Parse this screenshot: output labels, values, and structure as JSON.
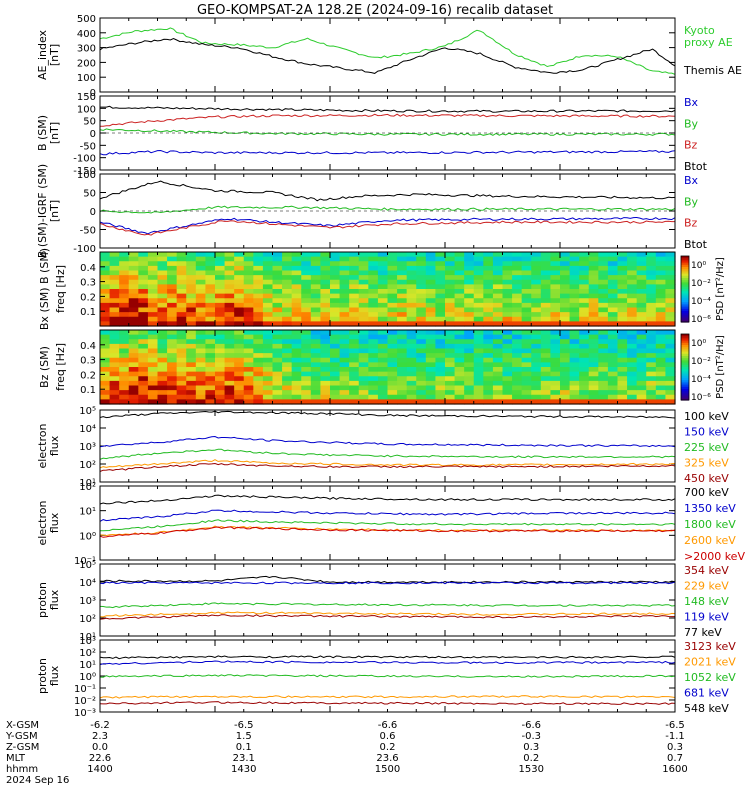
{
  "title": "GEO-KOMPSAT-2A 128.2E (2024-09-16) recalib dataset",
  "chart_data": [
    {
      "id": "ae",
      "type": "line",
      "ylabel": "AE_index\n[nT]",
      "ylim": [
        0,
        500
      ],
      "yticks": [
        "500",
        "400",
        "300",
        "200",
        "100",
        "0"
      ],
      "legend": [
        {
          "text": "Kyoto",
          "color": "#2ecc2e"
        },
        {
          "text": "proxy AE",
          "color": "#2ecc2e"
        },
        {
          "text": "Themis AE",
          "color": "#000000"
        }
      ],
      "series": [
        {
          "name": "Kyoto proxy AE",
          "color": "#2ecc2e",
          "x": [
            0,
            0.06,
            0.12,
            0.18,
            0.24,
            0.3,
            0.36,
            0.42,
            0.48,
            0.54,
            0.6,
            0.66,
            0.72,
            0.78,
            0.84,
            0.9,
            0.96,
            1.0
          ],
          "values": [
            360,
            410,
            430,
            330,
            320,
            300,
            360,
            290,
            230,
            260,
            310,
            420,
            260,
            170,
            250,
            240,
            140,
            120
          ]
        },
        {
          "name": "Themis AE",
          "color": "#000000",
          "x": [
            0,
            0.06,
            0.12,
            0.18,
            0.24,
            0.3,
            0.36,
            0.42,
            0.48,
            0.54,
            0.6,
            0.66,
            0.72,
            0.78,
            0.84,
            0.9,
            0.96,
            1.0
          ],
          "values": [
            290,
            330,
            360,
            320,
            300,
            240,
            190,
            160,
            130,
            220,
            300,
            260,
            170,
            130,
            150,
            220,
            290,
            180
          ]
        }
      ]
    },
    {
      "id": "bsm",
      "type": "line",
      "ylabel": "B (SM)\n[nT]",
      "ylim": [
        -150,
        150
      ],
      "yticks": [
        "150",
        "100",
        "50",
        "0",
        "-50",
        "-100",
        "-150"
      ],
      "legend": [
        {
          "text": "Bx",
          "color": "#0000cc"
        },
        {
          "text": "By",
          "color": "#22bb22"
        },
        {
          "text": "Bz",
          "color": "#cc2222"
        },
        {
          "text": "Btot",
          "color": "#000000"
        }
      ],
      "series": [
        {
          "name": "Btot",
          "color": "#000000",
          "x": [
            0,
            0.15,
            0.3,
            0.5,
            0.7,
            1.0
          ],
          "values": [
            105,
            100,
            95,
            90,
            88,
            90
          ]
        },
        {
          "name": "Bz",
          "color": "#cc2222",
          "x": [
            0,
            0.1,
            0.2,
            0.3,
            0.5,
            0.7,
            1.0
          ],
          "values": [
            30,
            50,
            65,
            70,
            72,
            70,
            68
          ]
        },
        {
          "name": "By",
          "color": "#22bb22",
          "x": [
            0,
            0.15,
            0.3,
            0.5,
            1.0
          ],
          "values": [
            15,
            5,
            -2,
            -5,
            -5
          ]
        },
        {
          "name": "Bx",
          "color": "#0000cc",
          "x": [
            0,
            0.1,
            0.2,
            0.3,
            0.5,
            1.0
          ],
          "values": [
            -85,
            -75,
            -80,
            -80,
            -80,
            -75
          ]
        }
      ]
    },
    {
      "id": "bigrf",
      "type": "line",
      "ylabel": "B (SM)-IGRF (SM)\n[nT]",
      "ylim": [
        -100,
        100
      ],
      "yticks": [
        "100",
        "50",
        "0",
        "-50",
        "-100"
      ],
      "legend": [
        {
          "text": "Bx",
          "color": "#0000cc"
        },
        {
          "text": "By",
          "color": "#22bb22"
        },
        {
          "text": "Bz",
          "color": "#cc2222"
        },
        {
          "text": "Btot",
          "color": "#000000"
        }
      ],
      "series": [
        {
          "name": "Btot",
          "color": "#000000",
          "x": [
            0,
            0.1,
            0.2,
            0.3,
            0.38,
            0.45,
            0.55,
            0.7,
            1.0
          ],
          "values": [
            35,
            80,
            55,
            50,
            30,
            40,
            45,
            40,
            35
          ]
        },
        {
          "name": "By",
          "color": "#22bb22",
          "x": [
            0,
            0.1,
            0.2,
            0.35,
            0.5,
            1.0
          ],
          "values": [
            0,
            -5,
            10,
            10,
            5,
            5
          ]
        },
        {
          "name": "Bx",
          "color": "#0000cc",
          "x": [
            0,
            0.08,
            0.15,
            0.22,
            0.3,
            0.4,
            0.5,
            0.7,
            1.0
          ],
          "values": [
            -30,
            -60,
            -40,
            -20,
            -30,
            -40,
            -25,
            -22,
            -20
          ]
        },
        {
          "name": "Bz",
          "color": "#cc2222",
          "x": [
            0,
            0.08,
            0.15,
            0.22,
            0.3,
            0.4,
            0.5,
            0.7,
            1.0
          ],
          "values": [
            -35,
            -65,
            -45,
            -25,
            -35,
            -45,
            -35,
            -30,
            -30
          ]
        }
      ]
    },
    {
      "id": "bxspec",
      "type": "heatmap",
      "ylabel": "Bx (SM) B (SM)",
      "ylabel2": "freq [Hz]",
      "yticks": [
        "0.4",
        "0.3",
        "0.2",
        "0.1"
      ],
      "colorbar_label": "PSD [nT²/Hz]",
      "colorbar_ticks": [
        "10⁰",
        "10⁻²",
        "10⁻⁴",
        "10⁻⁶"
      ],
      "cols": 60,
      "rows": 16,
      "activity": [
        0.85,
        0.9,
        0.95,
        1.0,
        0.9,
        0.85,
        0.8,
        0.85,
        0.9,
        0.8,
        0.75,
        0.7,
        0.75,
        0.85,
        0.9,
        0.8,
        0.7,
        0.6,
        0.5,
        0.55,
        0.6,
        0.5,
        0.45,
        0.5,
        0.45,
        0.5,
        0.55,
        0.5,
        0.45,
        0.4,
        0.45,
        0.5,
        0.45,
        0.5,
        0.45,
        0.4,
        0.45,
        0.5,
        0.45,
        0.4,
        0.4,
        0.45,
        0.5,
        0.45,
        0.4,
        0.35,
        0.4,
        0.45,
        0.4,
        0.35,
        0.4,
        0.45,
        0.4,
        0.35,
        0.4,
        0.45,
        0.4,
        0.35,
        0.4,
        0.45
      ]
    },
    {
      "id": "bzspec",
      "type": "heatmap",
      "ylabel": "Bz (SM)",
      "ylabel2": "freq [Hz]",
      "yticks": [
        "0.4",
        "0.3",
        "0.2",
        "0.1"
      ],
      "colorbar_label": "PSD [nT²/Hz]",
      "colorbar_ticks": [
        "10⁰",
        "10⁻²",
        "10⁻⁴",
        "10⁻⁶"
      ],
      "cols": 60,
      "rows": 16,
      "activity": [
        0.8,
        0.85,
        0.9,
        0.95,
        1.0,
        0.9,
        0.85,
        0.8,
        0.85,
        0.9,
        0.85,
        0.8,
        0.75,
        0.85,
        0.9,
        0.8,
        0.7,
        0.6,
        0.5,
        0.45,
        0.4,
        0.35,
        0.3,
        0.35,
        0.3,
        0.3,
        0.35,
        0.3,
        0.25,
        0.3,
        0.3,
        0.35,
        0.3,
        0.25,
        0.3,
        0.3,
        0.35,
        0.3,
        0.25,
        0.3,
        0.3,
        0.35,
        0.25,
        0.3,
        0.3,
        0.25,
        0.3,
        0.3,
        0.35,
        0.3,
        0.25,
        0.3,
        0.35,
        0.3,
        0.3,
        0.25,
        0.3,
        0.35,
        0.3,
        0.25
      ]
    },
    {
      "id": "elec1",
      "type": "line",
      "log": true,
      "ylabel": "electron\nflux",
      "ylim_exp": [
        1,
        5
      ],
      "yticks": [
        "10⁵",
        "10⁴",
        "10³",
        "10²",
        "10¹"
      ],
      "legend": [
        {
          "text": "100 keV",
          "color": "#000000"
        },
        {
          "text": "150 keV",
          "color": "#0000cc"
        },
        {
          "text": "225 keV",
          "color": "#22bb22"
        },
        {
          "text": "325 keV",
          "color": "#ff9900"
        },
        {
          "text": "450 keV",
          "color": "#990000"
        }
      ],
      "series": [
        {
          "name": "100 keV",
          "color": "#000000",
          "x": [
            0,
            0.1,
            0.2,
            0.3,
            0.4,
            0.5,
            0.7,
            1.0
          ],
          "values": [
            4.6,
            4.8,
            4.9,
            4.85,
            4.8,
            4.7,
            4.65,
            4.6
          ]
        },
        {
          "name": "150 keV",
          "color": "#0000cc",
          "x": [
            0,
            0.1,
            0.2,
            0.3,
            0.4,
            0.5,
            0.7,
            1.0
          ],
          "values": [
            3.0,
            3.2,
            3.5,
            3.3,
            3.2,
            3.1,
            3.05,
            3.0
          ]
        },
        {
          "name": "225 keV",
          "color": "#22bb22",
          "x": [
            0,
            0.1,
            0.2,
            0.3,
            0.4,
            0.5,
            0.7,
            1.0
          ],
          "values": [
            2.3,
            2.6,
            2.8,
            2.6,
            2.5,
            2.45,
            2.4,
            2.4
          ]
        },
        {
          "name": "325 keV",
          "color": "#ff9900",
          "x": [
            0,
            0.1,
            0.2,
            0.3,
            0.4,
            0.5,
            0.7,
            1.0
          ],
          "values": [
            1.8,
            2.0,
            2.2,
            2.05,
            2.0,
            1.95,
            1.95,
            2.0
          ]
        },
        {
          "name": "450 keV",
          "color": "#990000",
          "x": [
            0,
            0.1,
            0.2,
            0.3,
            0.4,
            0.5,
            0.7,
            1.0
          ],
          "values": [
            1.6,
            1.85,
            2.0,
            1.9,
            1.85,
            1.85,
            1.85,
            1.9
          ]
        }
      ]
    },
    {
      "id": "elec2",
      "type": "line",
      "log": true,
      "ylabel": "electron\nflux",
      "ylim_exp": [
        -1,
        2
      ],
      "yticks": [
        "10²",
        "10¹",
        "10⁰",
        "10⁻¹"
      ],
      "legend": [
        {
          "text": "700 keV",
          "color": "#000000"
        },
        {
          "text": "1350 keV",
          "color": "#0000cc"
        },
        {
          "text": "1800 keV",
          "color": "#22bb22"
        },
        {
          "text": "2600 keV",
          "color": "#ff9900"
        },
        {
          "text": ">2000 keV",
          "color": "#cc0000"
        }
      ],
      "series": [
        {
          "name": "700 keV",
          "color": "#000000",
          "x": [
            0,
            0.1,
            0.2,
            0.3,
            0.4,
            0.6,
            0.8,
            1.0
          ],
          "values": [
            1.3,
            1.4,
            1.6,
            1.55,
            1.5,
            1.45,
            1.45,
            1.45
          ]
        },
        {
          "name": "1350 keV",
          "color": "#0000cc",
          "x": [
            0,
            0.1,
            0.2,
            0.3,
            0.4,
            0.6,
            0.8,
            1.0
          ],
          "values": [
            0.6,
            0.75,
            1.0,
            0.95,
            0.9,
            0.85,
            0.9,
            0.9
          ]
        },
        {
          "name": "1800 keV",
          "color": "#22bb22",
          "x": [
            0,
            0.1,
            0.2,
            0.3,
            0.4,
            0.6,
            0.8,
            1.0
          ],
          "values": [
            0.2,
            0.35,
            0.6,
            0.55,
            0.5,
            0.45,
            0.45,
            0.45
          ]
        },
        {
          "name": "2600 keV",
          "color": "#ff9900",
          "x": [
            0,
            0.1,
            0.2,
            0.3,
            0.4,
            0.6,
            0.8,
            1.0
          ],
          "values": [
            0.0,
            0.1,
            0.35,
            0.3,
            0.25,
            0.2,
            0.2,
            0.2
          ]
        },
        {
          "name": ">2000 keV",
          "color": "#cc0000",
          "x": [
            0,
            0.1,
            0.2,
            0.3,
            0.4,
            0.6,
            0.8,
            1.0
          ],
          "values": [
            -0.05,
            0.08,
            0.32,
            0.27,
            0.22,
            0.18,
            0.18,
            0.18
          ]
        }
      ]
    },
    {
      "id": "prot1",
      "type": "line",
      "log": true,
      "ylabel": "proton\nflux",
      "ylim_exp": [
        1,
        5
      ],
      "yticks": [
        "10⁵",
        "10⁴",
        "10³",
        "10²",
        "10¹"
      ],
      "legend": [
        {
          "text": "354 keV",
          "color": "#990000"
        },
        {
          "text": "229 keV",
          "color": "#ff9900"
        },
        {
          "text": "148 keV",
          "color": "#22bb22"
        },
        {
          "text": "119 keV",
          "color": "#0000cc"
        },
        {
          "text": "77 keV",
          "color": "#000000"
        }
      ],
      "series": [
        {
          "name": "77 keV",
          "color": "#000000",
          "x": [
            0,
            0.2,
            0.3,
            0.4,
            1.0
          ],
          "values": [
            4.05,
            4.05,
            4.3,
            4.0,
            4.0
          ]
        },
        {
          "name": "119 keV",
          "color": "#0000cc",
          "x": [
            0,
            0.2,
            0.4,
            1.0
          ],
          "values": [
            3.95,
            3.95,
            3.95,
            3.95
          ]
        },
        {
          "name": "148 keV",
          "color": "#22bb22",
          "x": [
            0,
            0.2,
            0.4,
            0.7,
            1.0
          ],
          "values": [
            2.6,
            2.8,
            2.75,
            2.7,
            2.7
          ]
        },
        {
          "name": "229 keV",
          "color": "#ff9900",
          "x": [
            0,
            0.2,
            0.4,
            0.7,
            1.0
          ],
          "values": [
            2.1,
            2.3,
            2.25,
            2.2,
            2.25
          ]
        },
        {
          "name": "354 keV",
          "color": "#990000",
          "x": [
            0,
            0.2,
            0.4,
            0.7,
            1.0
          ],
          "values": [
            1.95,
            2.15,
            2.1,
            2.05,
            2.1
          ]
        }
      ]
    },
    {
      "id": "prot2",
      "type": "line",
      "log": true,
      "ylabel": "proton\nflux",
      "ylim_exp": [
        -3,
        3
      ],
      "yticks": [
        "10³",
        "10²",
        "10¹",
        "10⁰",
        "10⁻¹",
        "10⁻²",
        "10⁻³"
      ],
      "legend": [
        {
          "text": "3123 keV",
          "color": "#990000"
        },
        {
          "text": "2021 keV",
          "color": "#ff9900"
        },
        {
          "text": "1052 keV",
          "color": "#22bb22"
        },
        {
          "text": "681 keV",
          "color": "#0000cc"
        },
        {
          "text": "548 keV",
          "color": "#000000"
        }
      ],
      "series": [
        {
          "name": "548 keV",
          "color": "#000000",
          "x": [
            0,
            0.2,
            0.4,
            0.7,
            1.0
          ],
          "values": [
            1.5,
            1.6,
            1.6,
            1.55,
            1.6
          ]
        },
        {
          "name": "681 keV",
          "color": "#0000cc",
          "x": [
            0,
            0.2,
            0.4,
            0.7,
            1.0
          ],
          "values": [
            1.0,
            1.2,
            1.15,
            1.1,
            1.15
          ]
        },
        {
          "name": "1052 keV",
          "color": "#22bb22",
          "x": [
            0,
            0.2,
            0.4,
            0.7,
            1.0
          ],
          "values": [
            -0.05,
            0.05,
            0.0,
            -0.05,
            0.0
          ]
        },
        {
          "name": "2021 keV",
          "color": "#ff9900",
          "x": [
            0,
            0.2,
            0.4,
            0.7,
            1.0
          ],
          "values": [
            -1.8,
            -1.7,
            -1.75,
            -1.7,
            -1.75
          ]
        },
        {
          "name": "3123 keV",
          "color": "#990000",
          "x": [
            0,
            0.2,
            0.4,
            0.7,
            1.0
          ],
          "values": [
            -2.3,
            -2.2,
            -2.25,
            -2.3,
            -2.3
          ]
        }
      ]
    }
  ],
  "xaxis": {
    "row_labels": [
      "X-GSM",
      "Y-GSM",
      "Z-GSM",
      "MLT",
      "hhmm"
    ],
    "date": "2024 Sep 16",
    "columns": [
      [
        "-6.2",
        "2.3",
        "0.0",
        "22.6",
        "1400"
      ],
      [
        "-6.5",
        "1.5",
        "0.1",
        "23.1",
        "1430"
      ],
      [
        "-6.6",
        "0.6",
        "0.2",
        "23.6",
        "1500"
      ],
      [
        "-6.6",
        "-0.3",
        "0.3",
        "0.2",
        "1530"
      ],
      [
        "-6.5",
        "-1.1",
        "0.3",
        "0.7",
        "1600"
      ]
    ]
  }
}
